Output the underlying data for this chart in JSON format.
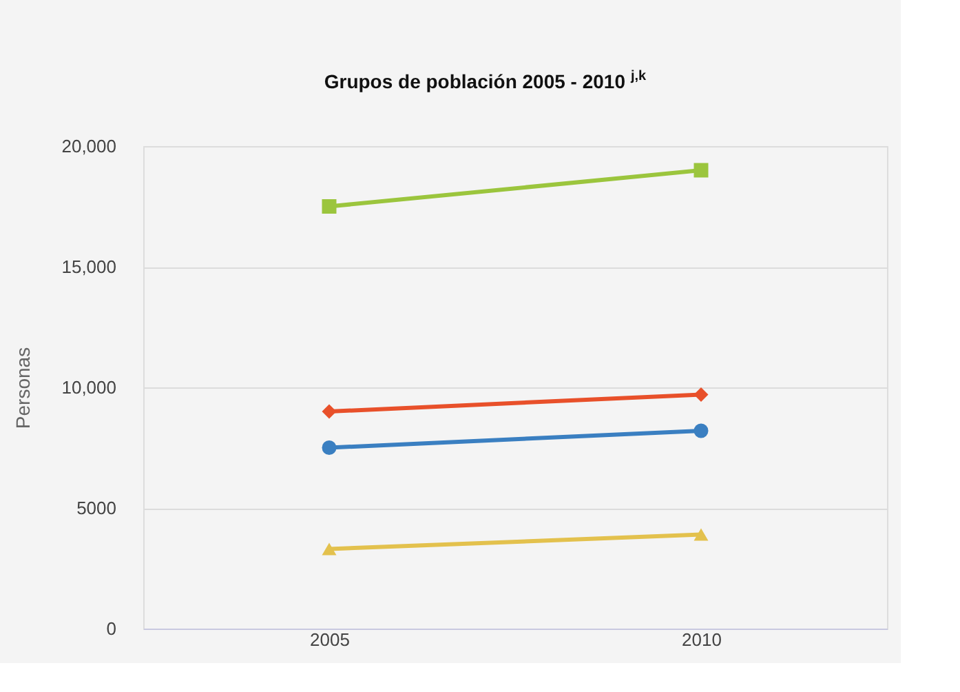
{
  "chart_data": {
    "type": "line",
    "title": "Grupos de población 2005 - 2010 $^{j,k}$",
    "ylabel": "Personas",
    "categories": [
      "2005",
      "2010"
    ],
    "series": [
      {
        "color": "#9bc53d",
        "marker": "square",
        "values": [
          17500,
          19000
        ]
      },
      {
        "color": "#e8502a",
        "marker": "diamond",
        "values": [
          9000,
          9700
        ]
      },
      {
        "color": "#3a7fc1",
        "marker": "circle",
        "values": [
          7500,
          8200
        ]
      },
      {
        "color": "#e3c14d",
        "marker": "triangle",
        "values": [
          3300,
          3900
        ]
      }
    ],
    "ylim": [
      0,
      20000
    ],
    "yticks": [
      0,
      5000,
      {
        "value": 10000,
        "label": "10,000"
      },
      {
        "value": 15000,
        "label": "15,000"
      },
      {
        "value": 20000,
        "label": "20,000"
      }
    ],
    "grid": "y",
    "line_style": "solid"
  }
}
